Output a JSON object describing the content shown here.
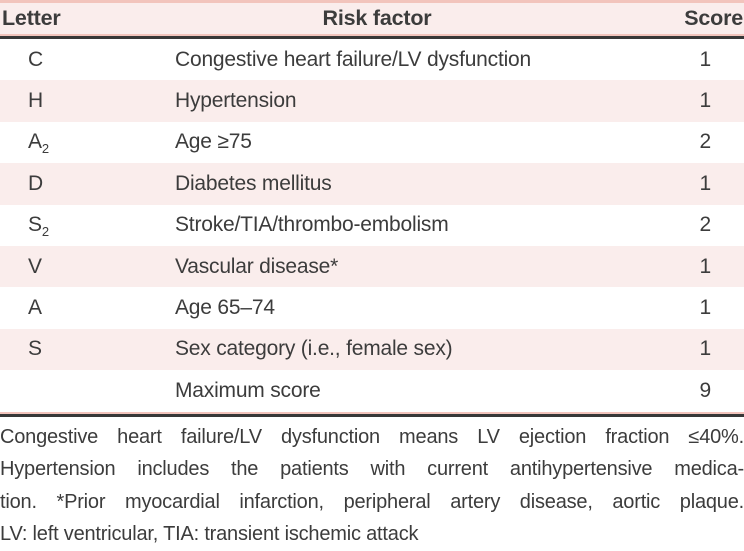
{
  "table": {
    "headers": {
      "letter": "Letter",
      "risk_factor": "Risk factor",
      "score": "Score"
    },
    "rows": [
      {
        "letter": "C",
        "letter_sub": "",
        "risk_factor": "Congestive heart failure/LV dysfunction",
        "score": "1"
      },
      {
        "letter": "H",
        "letter_sub": "",
        "risk_factor": "Hypertension",
        "score": "1"
      },
      {
        "letter": "A",
        "letter_sub": "2",
        "risk_factor": "Age ≥75",
        "score": "2"
      },
      {
        "letter": "D",
        "letter_sub": "",
        "risk_factor": "Diabetes mellitus",
        "score": "1"
      },
      {
        "letter": "S",
        "letter_sub": "2",
        "risk_factor": "Stroke/TIA/thrombo-embolism",
        "score": "2"
      },
      {
        "letter": "V",
        "letter_sub": "",
        "risk_factor": "Vascular disease*",
        "score": "1"
      },
      {
        "letter": "A",
        "letter_sub": "",
        "risk_factor": "Age 65–74",
        "score": "1"
      },
      {
        "letter": "S",
        "letter_sub": "",
        "risk_factor": "Sex category (i.e., female sex)",
        "score": "1"
      },
      {
        "letter": "",
        "letter_sub": "",
        "risk_factor": "Maximum score",
        "score": "9"
      }
    ]
  },
  "footnotes": {
    "lines": [
      "Congestive heart failure/LV dysfunction means LV ejection fraction ≤40%.",
      "Hypertension includes the patients with current antihypertensive medica-",
      "tion. *Prior myocardial infarction, peripheral artery disease, aortic plaque.",
      "LV: left ventricular, TIA: transient ischemic attack"
    ]
  },
  "colors": {
    "row_shade_pink": "#faedec",
    "salmon_border": "#f2c4bc",
    "dark_rule": "#383838",
    "text": "#3c3c3c"
  }
}
